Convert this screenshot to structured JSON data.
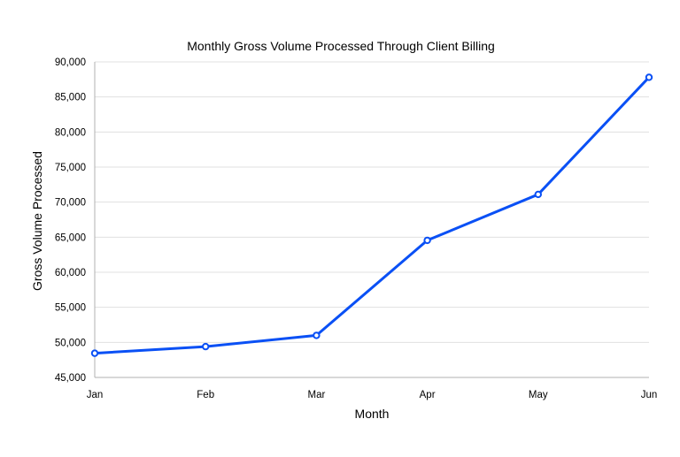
{
  "chart_data": {
    "type": "line",
    "title": "Monthly Gross Volume Processed Through Client Billing",
    "xlabel": "Month",
    "ylabel": "Gross Volume Processed",
    "categories": [
      "Jan",
      "Feb",
      "Mar",
      "Apr",
      "May",
      "Jun"
    ],
    "series": [
      {
        "name": "Gross Volume Processed",
        "values": [
          48450,
          49400,
          51000,
          64550,
          71100,
          87800
        ],
        "color": "#0a50f5"
      }
    ],
    "ylim": [
      45000,
      90000
    ],
    "yticks": [
      45000,
      50000,
      55000,
      60000,
      65000,
      70000,
      75000,
      80000,
      85000,
      90000
    ],
    "ytick_labels": [
      "45,000",
      "50,000",
      "55,000",
      "60,000",
      "65,000",
      "70,000",
      "75,000",
      "80,000",
      "85,000",
      "90,000"
    ],
    "grid": true,
    "legend": "none"
  }
}
